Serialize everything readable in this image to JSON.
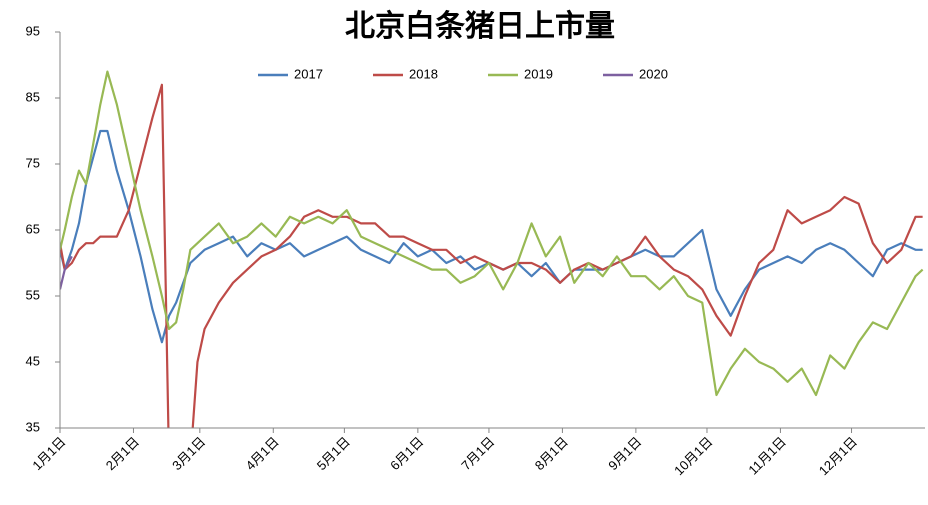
{
  "chart_data": {
    "type": "line",
    "title": "北京白条猪日上市量",
    "x": [
      1,
      3,
      6,
      9,
      12,
      15,
      18,
      21,
      25,
      30,
      35,
      40,
      44,
      47,
      50,
      53,
      56,
      59,
      62,
      68,
      74,
      80,
      86,
      92,
      98,
      104,
      110,
      116,
      122,
      128,
      134,
      140,
      146,
      152,
      158,
      164,
      170,
      176,
      182,
      188,
      194,
      200,
      206,
      212,
      218,
      224,
      230,
      236,
      242,
      248,
      254,
      260,
      266,
      272,
      278,
      284,
      290,
      296,
      302,
      308,
      314,
      320,
      326,
      332,
      338,
      344,
      350,
      356,
      362,
      365
    ],
    "xlim": [
      1,
      366
    ],
    "xticks": [
      {
        "value": 1,
        "label": "1月1日"
      },
      {
        "value": 32,
        "label": "2月1日"
      },
      {
        "value": 60,
        "label": "3月1日"
      },
      {
        "value": 91,
        "label": "4月1日"
      },
      {
        "value": 121,
        "label": "5月1日"
      },
      {
        "value": 152,
        "label": "6月1日"
      },
      {
        "value": 182,
        "label": "7月1日"
      },
      {
        "value": 213,
        "label": "8月1日"
      },
      {
        "value": 244,
        "label": "9月1日"
      },
      {
        "value": 274,
        "label": "10月1日"
      },
      {
        "value": 305,
        "label": "11月1日"
      },
      {
        "value": 335,
        "label": "12月1日"
      }
    ],
    "ylim": [
      35,
      95
    ],
    "yticks": [
      35,
      45,
      55,
      65,
      75,
      85,
      95
    ],
    "grid": false,
    "legend": "top",
    "series": [
      {
        "name": "2017",
        "color": "#4a7ebb",
        "values": [
          62,
          59,
          62,
          66,
          72,
          76,
          80,
          80,
          74,
          68,
          61,
          53,
          48,
          52,
          54,
          57,
          60,
          61,
          62,
          63,
          64,
          61,
          63,
          62,
          63,
          61,
          62,
          63,
          64,
          62,
          61,
          60,
          63,
          61,
          62,
          60,
          61,
          59,
          60,
          59,
          60,
          58,
          60,
          57,
          59,
          59,
          59,
          60,
          61,
          62,
          61,
          61,
          63,
          65,
          56,
          52,
          56,
          59,
          60,
          61,
          60,
          62,
          63,
          62,
          60,
          58,
          62,
          63,
          62,
          62
        ]
      },
      {
        "name": "2018",
        "color": "#be4b48",
        "values": [
          63,
          59,
          60,
          62,
          63,
          63,
          64,
          64,
          64,
          68,
          75,
          82,
          87,
          30,
          30,
          30,
          30,
          45,
          50,
          54,
          57,
          59,
          61,
          62,
          64,
          67,
          68,
          67,
          67,
          66,
          66,
          64,
          64,
          63,
          62,
          62,
          60,
          61,
          60,
          59,
          60,
          60,
          59,
          57,
          59,
          60,
          59,
          60,
          61,
          64,
          61,
          59,
          58,
          56,
          52,
          49,
          55,
          60,
          62,
          68,
          66,
          67,
          68,
          70,
          69,
          63,
          60,
          62,
          67,
          67
        ]
      },
      {
        "name": "2019",
        "color": "#98b954",
        "values": [
          62,
          65,
          70,
          74,
          72,
          78,
          84,
          89,
          84,
          76,
          68,
          61,
          55,
          50,
          51,
          56,
          62,
          63,
          64,
          66,
          63,
          64,
          66,
          64,
          67,
          66,
          67,
          66,
          68,
          64,
          63,
          62,
          61,
          60,
          59,
          59,
          57,
          58,
          60,
          56,
          60,
          66,
          61,
          64,
          57,
          60,
          58,
          61,
          58,
          58,
          56,
          58,
          55,
          54,
          40,
          44,
          47,
          45,
          44,
          42,
          44,
          40,
          46,
          44,
          48,
          51,
          50,
          54,
          58,
          59
        ]
      },
      {
        "name": "2020",
        "color": "#7d60a0",
        "values": [
          56,
          59,
          61,
          null,
          null,
          null,
          null,
          null,
          null,
          null,
          null,
          null,
          null,
          null,
          null,
          null,
          null,
          null,
          null,
          null,
          null,
          null,
          null,
          null,
          null,
          null,
          null,
          null,
          null,
          null,
          null,
          null,
          null,
          null,
          null,
          null,
          null,
          null,
          null,
          null,
          null,
          null,
          null,
          null,
          null,
          null,
          null,
          null,
          null,
          null,
          null,
          null,
          null,
          null,
          null,
          null,
          null,
          null,
          null,
          null,
          null,
          null,
          null,
          null,
          null,
          null,
          null,
          null,
          null,
          null
        ]
      }
    ]
  }
}
